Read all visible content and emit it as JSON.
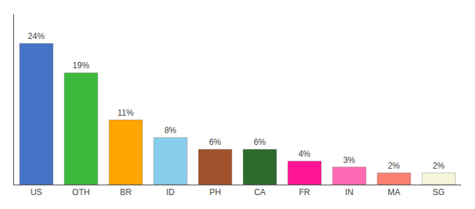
{
  "chart_data": {
    "type": "bar",
    "categories": [
      "US",
      "OTH",
      "BR",
      "ID",
      "PH",
      "CA",
      "FR",
      "IN",
      "MA",
      "SG"
    ],
    "values": [
      24,
      19,
      11,
      8,
      6,
      6,
      4,
      3,
      2,
      2
    ],
    "value_labels": [
      "24%",
      "19%",
      "11%",
      "8%",
      "6%",
      "6%",
      "4%",
      "3%",
      "2%",
      "2%"
    ],
    "colors": [
      "#4472C4",
      "#3CB83C",
      "#FFA500",
      "#87CEEB",
      "#A0522D",
      "#2D6A2D",
      "#FF1493",
      "#FF69B4",
      "#FA8072",
      "#F5F5DC"
    ],
    "ylim": [
      0,
      29
    ],
    "grid": false,
    "data_labels": true,
    "tick_labels": "x"
  }
}
